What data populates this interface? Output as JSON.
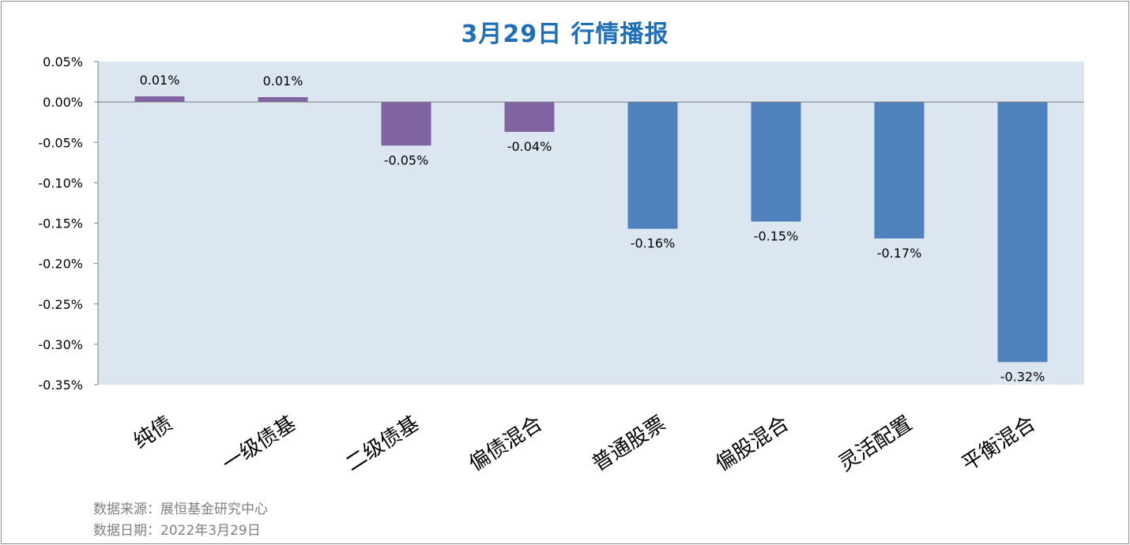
{
  "chart_data": {
    "type": "bar",
    "title": "3月29日  行情播报",
    "categories": [
      "纯债",
      "一级债基",
      "二级债基",
      "偏债混合",
      "普通股票",
      "偏股混合",
      "灵活配置",
      "平衡混合"
    ],
    "values": [
      0.01,
      0.01,
      -0.05,
      -0.04,
      -0.16,
      -0.15,
      -0.17,
      -0.32
    ],
    "plot_values": [
      0.007,
      0.006,
      -0.054,
      -0.037,
      -0.157,
      -0.148,
      -0.169,
      -0.322
    ],
    "data_labels": [
      "0.01%",
      "0.01%",
      "-0.05%",
      "-0.04%",
      "-0.16%",
      "-0.15%",
      "-0.17%",
      "-0.32%"
    ],
    "bar_colors": [
      "#8064a2",
      "#8064a2",
      "#8064a2",
      "#8064a2",
      "#4f81bd",
      "#4f81bd",
      "#4f81bd",
      "#4f81bd"
    ],
    "ylim": [
      -0.35,
      0.05
    ],
    "yticks": [
      0.05,
      0.0,
      -0.05,
      -0.1,
      -0.15,
      -0.2,
      -0.25,
      -0.3,
      -0.35
    ],
    "ytick_labels": [
      "0.05%",
      "0.00%",
      "-0.05%",
      "-0.10%",
      "-0.15%",
      "-0.20%",
      "-0.25%",
      "-0.30%",
      "-0.35%"
    ],
    "xlabel": "",
    "ylabel": "",
    "grid": false,
    "plot_background": "#dce6f1"
  },
  "footer": {
    "source": "数据来源：展恒基金研究中心",
    "date": "数据日期：2022年3月29日"
  }
}
